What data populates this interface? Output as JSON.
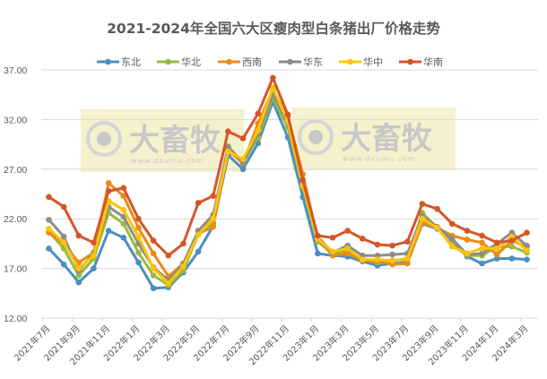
{
  "chart_data": {
    "type": "line",
    "title": "2021-2024年全国六大区瘦肉型白条猪出厂价格走势",
    "xlabel": "",
    "ylabel": "",
    "ylim": [
      12,
      37
    ],
    "yticks": [
      12,
      17,
      22,
      27,
      32,
      37
    ],
    "ytick_labels": [
      "12.00",
      "17.00",
      "22.00",
      "27.00",
      "32.00",
      "37.00"
    ],
    "grid": true,
    "legend_position": "top",
    "x": [
      "2021年7月",
      "2021年8月",
      "2021年9月",
      "2021年10月",
      "2021年11月",
      "2021年12月",
      "2022年1月",
      "2022年2月",
      "2022年3月",
      "2022年4月",
      "2022年5月",
      "2022年6月",
      "2022年7月",
      "2022年8月",
      "2022年9月",
      "2022年10月",
      "2022年11月",
      "2022年12月",
      "2023年1月",
      "2023年2月",
      "2023年3月",
      "2023年4月",
      "2023年5月",
      "2023年6月",
      "2023年7月",
      "2023年8月",
      "2023年9月",
      "2023年10月",
      "2023年11月",
      "2023年12月",
      "2024年1月",
      "2024年2月",
      "2024年3月"
    ],
    "xtick_labels": [
      "2021年7月",
      "2021年9月",
      "2021年11月",
      "2022年1月",
      "2022年3月",
      "2022年5月",
      "2022年7月",
      "2022年9月",
      "2022年11月",
      "2023年1月",
      "2023年3月",
      "2023年5月",
      "2023年7月",
      "2023年9月",
      "2023年11月",
      "2024年1月",
      "2024年3月"
    ],
    "series": [
      {
        "name": "东北",
        "color": "#4a8fc0",
        "values": [
          19.0,
          17.4,
          15.6,
          17.0,
          20.8,
          20.1,
          17.6,
          15.0,
          15.1,
          16.6,
          18.7,
          21.3,
          28.4,
          27.0,
          29.6,
          33.8,
          30.2,
          24.2,
          18.5,
          18.3,
          18.2,
          17.7,
          17.3,
          17.5,
          17.6,
          21.5,
          21.0,
          19.8,
          18.2,
          17.5,
          18.0,
          18.0,
          17.9
        ]
      },
      {
        "name": "华北",
        "color": "#9bbb3b",
        "values": [
          20.7,
          19.0,
          16.3,
          18.0,
          22.6,
          21.5,
          18.6,
          16.3,
          15.3,
          16.8,
          20.4,
          21.6,
          29.3,
          27.6,
          30.2,
          34.2,
          31.2,
          25.2,
          19.7,
          18.5,
          18.8,
          17.9,
          17.6,
          17.8,
          17.9,
          22.6,
          21.1,
          19.4,
          18.3,
          18.3,
          19.2,
          19.2,
          18.6
        ]
      },
      {
        "name": "西南",
        "color": "#ed8a15",
        "values": [
          20.6,
          19.5,
          17.6,
          18.6,
          25.6,
          24.3,
          21.1,
          18.5,
          16.2,
          17.5,
          20.5,
          21.2,
          28.9,
          27.6,
          31.6,
          35.0,
          32.3,
          26.5,
          20.0,
          18.3,
          18.5,
          17.8,
          17.7,
          17.4,
          17.5,
          21.6,
          21.1,
          20.3,
          19.9,
          19.6,
          18.4,
          19.8,
          19.2
        ]
      },
      {
        "name": "华东",
        "color": "#8c8c8c",
        "values": [
          21.9,
          20.2,
          16.8,
          18.5,
          23.2,
          22.2,
          19.5,
          17.1,
          15.8,
          17.5,
          20.8,
          22.4,
          29.2,
          27.7,
          30.6,
          34.6,
          31.6,
          25.6,
          20.2,
          18.6,
          19.3,
          18.3,
          18.3,
          18.4,
          18.5,
          22.3,
          21.2,
          20.0,
          18.4,
          18.5,
          19.5,
          20.6,
          19.3
        ]
      },
      {
        "name": "华中",
        "color": "#fcc40a",
        "values": [
          21.0,
          19.6,
          17.0,
          18.3,
          23.8,
          22.9,
          20.2,
          17.0,
          15.5,
          17.2,
          20.4,
          22.0,
          28.8,
          28.0,
          30.9,
          35.2,
          31.8,
          25.4,
          20.0,
          18.7,
          19.0,
          17.9,
          17.9,
          17.8,
          18.0,
          22.0,
          21.1,
          19.2,
          18.5,
          19.0,
          19.0,
          20.2,
          18.8
        ]
      },
      {
        "name": "华南",
        "color": "#d65527",
        "values": [
          24.2,
          23.2,
          20.3,
          19.6,
          24.8,
          25.1,
          22.0,
          19.8,
          18.3,
          19.5,
          23.6,
          24.3,
          30.8,
          30.1,
          32.6,
          36.2,
          32.5,
          25.9,
          20.3,
          20.1,
          20.8,
          20.0,
          19.4,
          19.3,
          19.7,
          23.5,
          23.0,
          21.5,
          20.8,
          20.3,
          19.6,
          19.8,
          20.6
        ]
      }
    ]
  },
  "watermark": {
    "brand": "大畜牧",
    "url": "www.dxumu.com"
  }
}
